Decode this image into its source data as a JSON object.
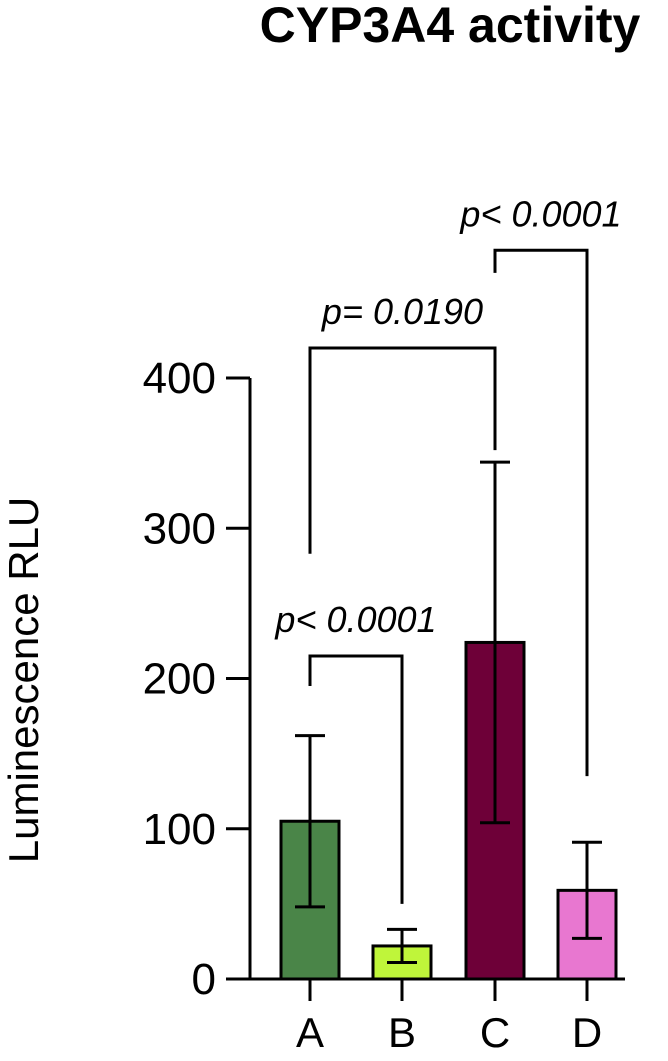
{
  "chart_data": {
    "type": "bar",
    "title": "CYP3A4 activity",
    "xlabel": "",
    "ylabel": "Luminescence RLU",
    "ylim": [
      0,
      400
    ],
    "yticks": [
      0,
      100,
      200,
      300,
      400
    ],
    "grid": false,
    "legend": "none",
    "categories": [
      "A",
      "B",
      "C",
      "D"
    ],
    "values": [
      105,
      22,
      224,
      59
    ],
    "error_low": [
      48,
      11,
      104,
      27
    ],
    "error_high": [
      162,
      33,
      344,
      91
    ],
    "colors": [
      "#4a8548",
      "#bff53a",
      "#6e0038",
      "#e877d0"
    ],
    "comparisons": [
      {
        "from": "A",
        "to": "B",
        "label": "p< 0.0001",
        "y": 215,
        "from_start": 195,
        "to_end": 50
      },
      {
        "from": "A",
        "to": "C",
        "label": "p= 0.0190",
        "y": 420,
        "from_start": 283,
        "to_end": 352
      },
      {
        "from": "C",
        "to": "D",
        "label": "p< 0.0001",
        "y": 485,
        "from_start": 470,
        "to_end": 135
      }
    ]
  }
}
